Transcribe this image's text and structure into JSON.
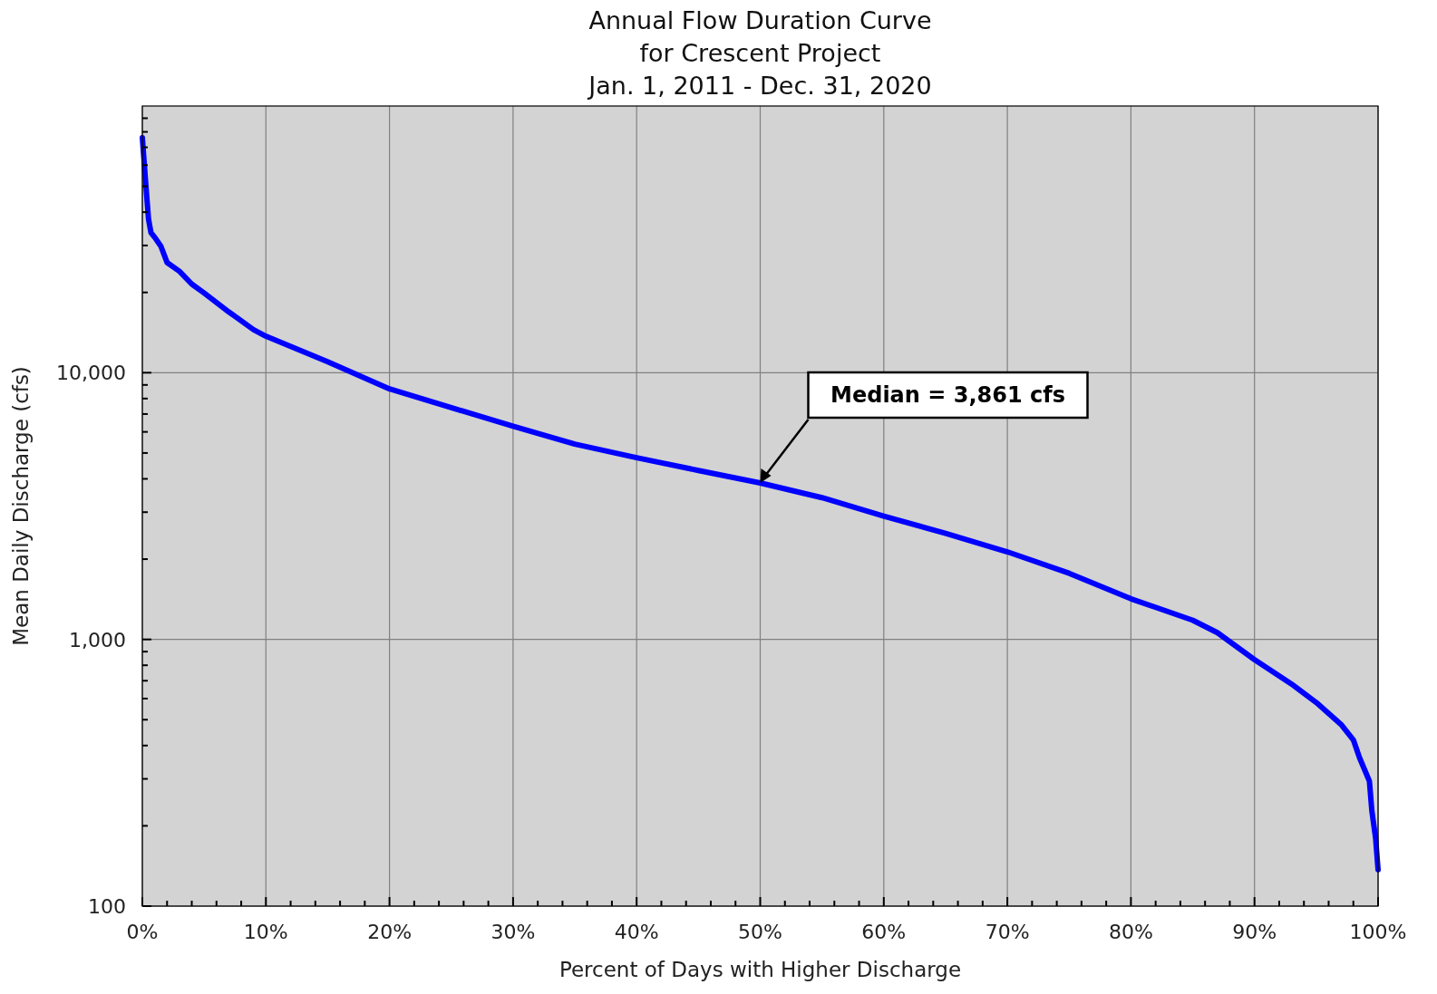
{
  "chart_data": {
    "type": "line",
    "title": "Annual Flow Duration Curve\nfor Crescent Project\nJan. 1, 2011 - Dec. 31, 2020",
    "xlabel": "Percent of Days with Higher Discharge",
    "ylabel": "Mean Daily Discharge (cfs)",
    "log": "y",
    "grid": true,
    "marker": "none",
    "line_style": "solid",
    "xlim": [
      0,
      100
    ],
    "ylim": [
      100,
      100000
    ],
    "xticks": [
      {
        "value": 0,
        "label": "0%"
      },
      {
        "value": 2,
        "label": null
      },
      {
        "value": 4,
        "label": null
      },
      {
        "value": 6,
        "label": null
      },
      {
        "value": 8,
        "label": null
      },
      {
        "value": 10,
        "label": "10%"
      },
      {
        "value": 12,
        "label": null
      },
      {
        "value": 14,
        "label": null
      },
      {
        "value": 16,
        "label": null
      },
      {
        "value": 18,
        "label": null
      },
      {
        "value": 20,
        "label": "20%"
      },
      {
        "value": 22,
        "label": null
      },
      {
        "value": 24,
        "label": null
      },
      {
        "value": 26,
        "label": null
      },
      {
        "value": 28,
        "label": null
      },
      {
        "value": 30,
        "label": "30%"
      },
      {
        "value": 32,
        "label": null
      },
      {
        "value": 34,
        "label": null
      },
      {
        "value": 36,
        "label": null
      },
      {
        "value": 38,
        "label": null
      },
      {
        "value": 40,
        "label": "40%"
      },
      {
        "value": 42,
        "label": null
      },
      {
        "value": 44,
        "label": null
      },
      {
        "value": 46,
        "label": null
      },
      {
        "value": 48,
        "label": null
      },
      {
        "value": 50,
        "label": "50%"
      },
      {
        "value": 52,
        "label": null
      },
      {
        "value": 54,
        "label": null
      },
      {
        "value": 56,
        "label": null
      },
      {
        "value": 58,
        "label": null
      },
      {
        "value": 60,
        "label": "60%"
      },
      {
        "value": 62,
        "label": null
      },
      {
        "value": 64,
        "label": null
      },
      {
        "value": 66,
        "label": null
      },
      {
        "value": 68,
        "label": null
      },
      {
        "value": 70,
        "label": "70%"
      },
      {
        "value": 72,
        "label": null
      },
      {
        "value": 74,
        "label": null
      },
      {
        "value": 76,
        "label": null
      },
      {
        "value": 78,
        "label": null
      },
      {
        "value": 80,
        "label": "80%"
      },
      {
        "value": 82,
        "label": null
      },
      {
        "value": 84,
        "label": null
      },
      {
        "value": 86,
        "label": null
      },
      {
        "value": 88,
        "label": null
      },
      {
        "value": 90,
        "label": "90%"
      },
      {
        "value": 92,
        "label": null
      },
      {
        "value": 94,
        "label": null
      },
      {
        "value": 96,
        "label": null
      },
      {
        "value": 98,
        "label": null
      },
      {
        "value": 100,
        "label": "100%"
      }
    ],
    "yticks": [
      100,
      {
        "value": 200,
        "label": null
      },
      {
        "value": 300,
        "label": null
      },
      {
        "value": 400,
        "label": null
      },
      {
        "value": 500,
        "label": null
      },
      {
        "value": 600,
        "label": null
      },
      {
        "value": 700,
        "label": null
      },
      {
        "value": 800,
        "label": null
      },
      {
        "value": 900,
        "label": null
      },
      {
        "value": 1000,
        "label": "1,000"
      },
      {
        "value": 2000,
        "label": null
      },
      {
        "value": 3000,
        "label": null
      },
      {
        "value": 4000,
        "label": null
      },
      {
        "value": 5000,
        "label": null
      },
      {
        "value": 6000,
        "label": null
      },
      {
        "value": 7000,
        "label": null
      },
      {
        "value": 8000,
        "label": null
      },
      {
        "value": 9000,
        "label": null
      },
      {
        "value": 10000,
        "label": "10,000"
      },
      {
        "value": 20000,
        "label": null
      },
      {
        "value": 30000,
        "label": null
      },
      {
        "value": 40000,
        "label": null
      },
      {
        "value": 50000,
        "label": null
      },
      {
        "value": 60000,
        "label": null
      },
      {
        "value": 70000,
        "label": null
      },
      {
        "value": 80000,
        "label": null
      },
      {
        "value": 90000,
        "label": null
      }
    ],
    "series": [
      {
        "color": "#0000ff",
        "x": [
          0,
          0.3,
          0.5,
          0.7,
          1,
          1.5,
          2,
          3,
          4,
          5,
          7,
          9,
          10,
          15,
          20,
          25,
          30,
          35,
          40,
          45,
          50,
          55,
          60,
          65,
          70,
          75,
          80,
          85,
          87,
          90,
          93,
          95,
          97,
          98,
          98.5,
          99.3,
          99.5,
          99.8,
          100
        ],
        "values": [
          76000,
          49500,
          37700,
          33500,
          32200,
          29800,
          25900,
          24000,
          21500,
          19900,
          16900,
          14500,
          13700,
          11000,
          8700,
          7400,
          6300,
          5400,
          4800,
          4300,
          3861,
          3400,
          2900,
          2500,
          2130,
          1770,
          1420,
          1180,
          1060,
          840,
          680,
          580,
          480,
          420,
          360,
          294,
          227,
          180,
          137
        ]
      }
    ],
    "annotations": [
      {
        "text": "Median = 3,861 cfs",
        "x": 50,
        "y": 3861
      }
    ]
  }
}
